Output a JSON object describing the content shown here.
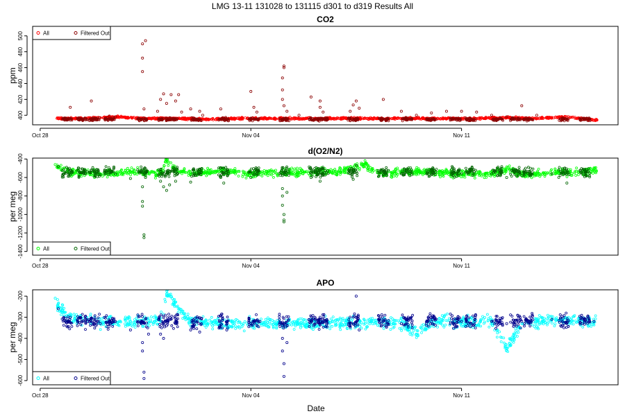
{
  "figure": {
    "title": "LMG   13-11    131028 to 131115    d301 to d319   Results All",
    "xlabel": "Date",
    "colors": {
      "co2_all": "#ff0000",
      "co2_filtered": "#8b0000",
      "o2_all": "#00ff00",
      "o2_filtered": "#006400",
      "apo_all": "#00ffff",
      "apo_filtered": "#00008b"
    }
  },
  "chart_data": [
    {
      "type": "scatter",
      "title": "CO2",
      "ylabel": "ppm",
      "x_range_days": [
        0,
        19
      ],
      "x_ticks": [
        {
          "day": 0,
          "label": "Oct 28"
        },
        {
          "day": 7,
          "label": "Nov 04"
        },
        {
          "day": 14,
          "label": "Nov 11"
        }
      ],
      "ylim": [
        388,
        512
      ],
      "y_ticks": [
        400,
        420,
        440,
        460,
        480,
        500
      ],
      "legend": {
        "position": "top-left",
        "entries": [
          "All",
          "Filtered Out"
        ]
      },
      "baseline": 395,
      "series": [
        {
          "name": "All",
          "marker": "open-circle",
          "color": "#ff0000",
          "points": [
            [
              0.6,
              396
            ],
            [
              1.2,
              396
            ],
            [
              2.0,
              397
            ],
            [
              2.6,
              398
            ],
            [
              3.3,
              396
            ],
            [
              4.5,
              396
            ],
            [
              5.5,
              395
            ],
            [
              6.5,
              396
            ],
            [
              7.5,
              396
            ],
            [
              8.5,
              396
            ],
            [
              9.5,
              396
            ],
            [
              10.5,
              396
            ],
            [
              11.5,
              396
            ],
            [
              12.5,
              396
            ],
            [
              13.5,
              396
            ],
            [
              14.5,
              396
            ],
            [
              15.5,
              397
            ],
            [
              16.5,
              396
            ],
            [
              17.5,
              398
            ],
            [
              18.4,
              394
            ]
          ]
        },
        {
          "name": "Filtered Out",
          "marker": "open-circle",
          "color": "#8b0000",
          "points": [
            [
              1.0,
              410
            ],
            [
              1.7,
              418
            ],
            [
              2.3,
              399
            ],
            [
              2.5,
              398
            ],
            [
              3.4,
              455
            ],
            [
              3.4,
              472
            ],
            [
              3.4,
              490
            ],
            [
              3.5,
              494
            ],
            [
              3.45,
              408
            ],
            [
              3.9,
              405
            ],
            [
              4.0,
              420
            ],
            [
              4.1,
              427
            ],
            [
              4.2,
              415
            ],
            [
              4.35,
              426
            ],
            [
              4.5,
              418
            ],
            [
              4.6,
              426
            ],
            [
              4.7,
              404
            ],
            [
              5.0,
              408
            ],
            [
              5.3,
              405
            ],
            [
              5.4,
              400
            ],
            [
              6.0,
              408
            ],
            [
              7.0,
              430
            ],
            [
              7.1,
              410
            ],
            [
              7.2,
              404
            ],
            [
              8.05,
              420
            ],
            [
              8.05,
              432
            ],
            [
              8.05,
              447
            ],
            [
              8.1,
              460
            ],
            [
              8.1,
              462
            ],
            [
              8.1,
              412
            ],
            [
              8.2,
              405
            ],
            [
              8.6,
              400
            ],
            [
              9.0,
              423
            ],
            [
              9.3,
              410
            ],
            [
              9.3,
              418
            ],
            [
              9.4,
              404
            ],
            [
              10.3,
              405
            ],
            [
              10.4,
              413
            ],
            [
              10.5,
              418
            ],
            [
              10.6,
              409
            ],
            [
              11.4,
              420
            ],
            [
              12.0,
              405
            ],
            [
              12.5,
              400
            ],
            [
              13.0,
              403
            ],
            [
              13.5,
              405
            ],
            [
              14.0,
              405
            ],
            [
              14.5,
              404
            ],
            [
              15.0,
              400
            ],
            [
              15.5,
              398
            ],
            [
              16.0,
              412
            ],
            [
              16.5,
              400
            ]
          ]
        }
      ]
    },
    {
      "type": "scatter",
      "title": "d(O2/N2)",
      "ylabel": "per meg",
      "x_range_days": [
        0,
        19
      ],
      "x_ticks": [
        {
          "day": 0,
          "label": "Oct 28"
        },
        {
          "day": 7,
          "label": "Nov 04"
        },
        {
          "day": 14,
          "label": "Nov 11"
        }
      ],
      "ylim": [
        -1440,
        -390
      ],
      "y_ticks": [
        -400,
        -600,
        -800,
        -1000,
        -1200,
        -1400
      ],
      "legend": {
        "position": "bottom-left",
        "entries": [
          "All",
          "Filtered Out"
        ]
      },
      "baseline": -540,
      "series": [
        {
          "name": "All",
          "marker": "open-circle",
          "color": "#00ff00",
          "points": [
            [
              0.5,
              -460
            ],
            [
              0.6,
              -480
            ],
            [
              1.0,
              -540
            ],
            [
              2.0,
              -560
            ],
            [
              3.0,
              -540
            ],
            [
              4.0,
              -560
            ],
            [
              4.5,
              -520
            ],
            [
              4.2,
              -410
            ],
            [
              5.0,
              -560
            ],
            [
              6.0,
              -530
            ],
            [
              7.0,
              -560
            ],
            [
              8.0,
              -540
            ],
            [
              9.0,
              -540
            ],
            [
              10.0,
              -540
            ],
            [
              10.8,
              -450
            ],
            [
              11.0,
              -520
            ],
            [
              11.5,
              -560
            ],
            [
              12.0,
              -540
            ],
            [
              13.0,
              -540
            ],
            [
              14.0,
              -560
            ],
            [
              15.0,
              -560
            ],
            [
              15.5,
              -510
            ],
            [
              16.0,
              -560
            ],
            [
              16.5,
              -560
            ],
            [
              17.5,
              -540
            ],
            [
              18.0,
              -540
            ],
            [
              18.4,
              -520
            ]
          ]
        },
        {
          "name": "Filtered Out",
          "marker": "open-circle",
          "color": "#006400",
          "points": [
            [
              0.6,
              -480
            ],
            [
              1.0,
              -520
            ],
            [
              1.5,
              -560
            ],
            [
              2.0,
              -570
            ],
            [
              2.5,
              -560
            ],
            [
              3.4,
              -700
            ],
            [
              3.4,
              -860
            ],
            [
              3.4,
              -910
            ],
            [
              3.45,
              -1220
            ],
            [
              3.45,
              -1250
            ],
            [
              3.0,
              -610
            ],
            [
              3.5,
              -600
            ],
            [
              4.0,
              -640
            ],
            [
              4.1,
              -700
            ],
            [
              4.2,
              -740
            ],
            [
              4.3,
              -680
            ],
            [
              4.5,
              -640
            ],
            [
              5.0,
              -650
            ],
            [
              5.1,
              -580
            ],
            [
              6.0,
              -600
            ],
            [
              6.1,
              -660
            ],
            [
              7.0,
              -600
            ],
            [
              7.2,
              -560
            ],
            [
              8.05,
              -720
            ],
            [
              8.05,
              -800
            ],
            [
              8.05,
              -900
            ],
            [
              8.1,
              -1000
            ],
            [
              8.1,
              -1060
            ],
            [
              8.1,
              -1080
            ],
            [
              8.2,
              -760
            ],
            [
              9.0,
              -600
            ],
            [
              9.3,
              -640
            ],
            [
              10.3,
              -560
            ],
            [
              10.5,
              -470
            ],
            [
              10.4,
              -620
            ],
            [
              11.4,
              -570
            ],
            [
              12.0,
              -560
            ],
            [
              13.0,
              -560
            ],
            [
              14.0,
              -560
            ],
            [
              15.0,
              -560
            ],
            [
              15.5,
              -600
            ],
            [
              16.0,
              -580
            ],
            [
              17.0,
              -560
            ],
            [
              17.5,
              -660
            ],
            [
              18.0,
              -560
            ]
          ]
        }
      ]
    },
    {
      "type": "scatter",
      "title": "APO",
      "ylabel": "per meg",
      "x_range_days": [
        0,
        19
      ],
      "x_ticks": [
        {
          "day": 0,
          "label": "Oct 28"
        },
        {
          "day": 7,
          "label": "Nov 04"
        },
        {
          "day": 14,
          "label": "Nov 11"
        }
      ],
      "ylim": [
        -620,
        -170
      ],
      "y_ticks": [
        -200,
        -300,
        -400,
        -500,
        -600
      ],
      "legend": {
        "position": "bottom-left",
        "entries": [
          "All",
          "Filtered Out"
        ]
      },
      "baseline": -320,
      "series": [
        {
          "name": "All",
          "marker": "open-circle",
          "color": "#00ffff",
          "points": [
            [
              0.5,
              -210
            ],
            [
              0.6,
              -250
            ],
            [
              1.0,
              -300
            ],
            [
              2.0,
              -320
            ],
            [
              3.0,
              -320
            ],
            [
              4.0,
              -320
            ],
            [
              4.2,
              -190
            ],
            [
              5.0,
              -320
            ],
            [
              6.0,
              -330
            ],
            [
              7.0,
              -330
            ],
            [
              8.0,
              -330
            ],
            [
              9.0,
              -330
            ],
            [
              10.0,
              -330
            ],
            [
              11.0,
              -320
            ],
            [
              12.0,
              -330
            ],
            [
              12.5,
              -380
            ],
            [
              13.0,
              -320
            ],
            [
              14.0,
              -320
            ],
            [
              15.0,
              -320
            ],
            [
              15.5,
              -450
            ],
            [
              16.0,
              -330
            ],
            [
              17.0,
              -310
            ],
            [
              18.0,
              -320
            ],
            [
              18.4,
              -320
            ]
          ]
        },
        {
          "name": "Filtered Out",
          "marker": "open-circle",
          "color": "#00008b",
          "points": [
            [
              0.6,
              -260
            ],
            [
              1.0,
              -300
            ],
            [
              1.5,
              -310
            ],
            [
              2.0,
              -330
            ],
            [
              2.5,
              -320
            ],
            [
              3.0,
              -360
            ],
            [
              3.4,
              -420
            ],
            [
              3.4,
              -460
            ],
            [
              3.45,
              -560
            ],
            [
              3.45,
              -590
            ],
            [
              3.6,
              -380
            ],
            [
              4.0,
              -380
            ],
            [
              4.1,
              -400
            ],
            [
              4.2,
              -340
            ],
            [
              4.5,
              -330
            ],
            [
              5.0,
              -360
            ],
            [
              5.3,
              -370
            ],
            [
              6.0,
              -320
            ],
            [
              6.2,
              -360
            ],
            [
              7.0,
              -330
            ],
            [
              7.3,
              -320
            ],
            [
              8.05,
              -400
            ],
            [
              8.05,
              -460
            ],
            [
              8.1,
              -520
            ],
            [
              8.1,
              -580
            ],
            [
              8.2,
              -420
            ],
            [
              9.0,
              -320
            ],
            [
              9.3,
              -300
            ],
            [
              10.3,
              -330
            ],
            [
              10.5,
              -200
            ],
            [
              10.6,
              -360
            ],
            [
              11.4,
              -320
            ],
            [
              12.0,
              -330
            ],
            [
              13.0,
              -320
            ],
            [
              14.0,
              -320
            ],
            [
              15.0,
              -320
            ],
            [
              15.5,
              -330
            ],
            [
              16.0,
              -320
            ],
            [
              17.0,
              -310
            ],
            [
              18.0,
              -330
            ],
            [
              18.4,
              -320
            ]
          ]
        }
      ]
    }
  ]
}
